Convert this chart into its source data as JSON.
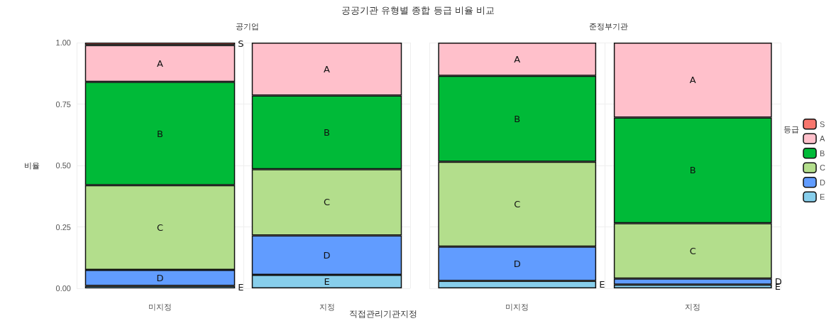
{
  "chart_data": [
    {
      "type": "bar",
      "title": "공공기관 유형별 종합 등급 비율 비교",
      "subtitle": "공기업",
      "xlabel": "직접관리기관지정",
      "ylabel": "비율",
      "categories": [
        "미지정",
        "지정"
      ],
      "stacked": true,
      "ylim": [
        0,
        1
      ],
      "yticks": [
        {
          "value": 0,
          "label": "0.00"
        },
        {
          "value": 0.25,
          "label": "0.25"
        },
        {
          "value": 0.5,
          "label": "0.50"
        },
        {
          "value": 0.75,
          "label": "0.75"
        },
        {
          "value": 1,
          "label": "1.00"
        }
      ],
      "grid": true,
      "legend": false,
      "series": [
        {
          "name": "E",
          "color": "#87ceeb",
          "values": [
            0.01,
            0.055
          ]
        },
        {
          "name": "D",
          "color": "#619cff",
          "values": [
            0.065,
            0.16
          ]
        },
        {
          "name": "C",
          "color": "#b3de8c",
          "values": [
            0.345,
            0.27
          ]
        },
        {
          "name": "B",
          "color": "#00ba38",
          "values": [
            0.42,
            0.3
          ]
        },
        {
          "name": "A",
          "color": "#ffc0cb",
          "values": [
            0.15,
            0.215
          ]
        },
        {
          "name": "S",
          "color": "#f8766d",
          "values": [
            0.01,
            null
          ]
        }
      ]
    },
    {
      "type": "bar",
      "subtitle": "준정부기관",
      "legend_title": "등급",
      "categories": [
        "미지정",
        "지정"
      ],
      "stacked": true,
      "ylim": [
        0,
        1
      ],
      "yticks": [
        0,
        0.25,
        0.5,
        0.75,
        1
      ],
      "grid": true,
      "legend": "right",
      "tick_labels": "x",
      "series": [
        {
          "name": "E",
          "color": "#87ceeb",
          "values": [
            0.03,
            0.015
          ]
        },
        {
          "name": "D",
          "color": "#619cff",
          "values": [
            0.14,
            0.025
          ]
        },
        {
          "name": "C",
          "color": "#b3de8c",
          "values": [
            0.345,
            0.225
          ]
        },
        {
          "name": "B",
          "color": "#00ba38",
          "values": [
            0.35,
            0.43
          ]
        },
        {
          "name": "A",
          "color": "#ffc0cb",
          "values": [
            0.135,
            0.305
          ]
        },
        {
          "name": "S",
          "color": "#f8766d",
          "values": [
            null,
            null
          ]
        }
      ]
    }
  ]
}
